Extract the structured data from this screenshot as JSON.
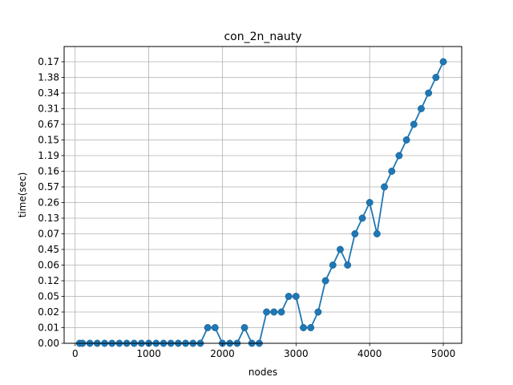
{
  "chart_data": {
    "type": "line",
    "title": "con_2n_nauty",
    "xlabel": "nodes",
    "ylabel": "time(sec)",
    "xlim": [
      -150,
      5250
    ],
    "x_ticks": [
      "0",
      "1000",
      "2000",
      "3000",
      "4000",
      "5000"
    ],
    "y_categories": [
      "0.00",
      "0.01",
      "0.02",
      "0.05",
      "0.12",
      "0.06",
      "0.45",
      "0.07",
      "0.13",
      "0.26",
      "0.57",
      "0.16",
      "1.19",
      "0.15",
      "0.67",
      "0.31",
      "0.34",
      "1.38",
      "0.17"
    ],
    "grid": true,
    "marker": "circle",
    "line_color": "#1f77b4",
    "points": [
      {
        "x": 60,
        "y": "0.00"
      },
      {
        "x": 100,
        "y": "0.00"
      },
      {
        "x": 200,
        "y": "0.00"
      },
      {
        "x": 300,
        "y": "0.00"
      },
      {
        "x": 400,
        "y": "0.00"
      },
      {
        "x": 500,
        "y": "0.00"
      },
      {
        "x": 600,
        "y": "0.00"
      },
      {
        "x": 700,
        "y": "0.00"
      },
      {
        "x": 800,
        "y": "0.00"
      },
      {
        "x": 900,
        "y": "0.00"
      },
      {
        "x": 1000,
        "y": "0.00"
      },
      {
        "x": 1100,
        "y": "0.00"
      },
      {
        "x": 1200,
        "y": "0.00"
      },
      {
        "x": 1300,
        "y": "0.00"
      },
      {
        "x": 1400,
        "y": "0.00"
      },
      {
        "x": 1500,
        "y": "0.00"
      },
      {
        "x": 1600,
        "y": "0.00"
      },
      {
        "x": 1700,
        "y": "0.00"
      },
      {
        "x": 1800,
        "y": "0.01"
      },
      {
        "x": 1900,
        "y": "0.01"
      },
      {
        "x": 2000,
        "y": "0.00"
      },
      {
        "x": 2100,
        "y": "0.00"
      },
      {
        "x": 2200,
        "y": "0.00"
      },
      {
        "x": 2300,
        "y": "0.01"
      },
      {
        "x": 2400,
        "y": "0.00"
      },
      {
        "x": 2500,
        "y": "0.00"
      },
      {
        "x": 2600,
        "y": "0.02"
      },
      {
        "x": 2700,
        "y": "0.02"
      },
      {
        "x": 2800,
        "y": "0.02"
      },
      {
        "x": 2900,
        "y": "0.05"
      },
      {
        "x": 3000,
        "y": "0.05"
      },
      {
        "x": 3100,
        "y": "0.01"
      },
      {
        "x": 3200,
        "y": "0.01"
      },
      {
        "x": 3300,
        "y": "0.02"
      },
      {
        "x": 3400,
        "y": "0.12"
      },
      {
        "x": 3500,
        "y": "0.06"
      },
      {
        "x": 3600,
        "y": "0.45"
      },
      {
        "x": 3700,
        "y": "0.06"
      },
      {
        "x": 3800,
        "y": "0.07"
      },
      {
        "x": 3900,
        "y": "0.13"
      },
      {
        "x": 4000,
        "y": "0.26"
      },
      {
        "x": 4100,
        "y": "0.07"
      },
      {
        "x": 4200,
        "y": "0.57"
      },
      {
        "x": 4300,
        "y": "0.16"
      },
      {
        "x": 4400,
        "y": "1.19"
      },
      {
        "x": 4500,
        "y": "0.15"
      },
      {
        "x": 4600,
        "y": "0.67"
      },
      {
        "x": 4700,
        "y": "0.31"
      },
      {
        "x": 4800,
        "y": "0.34"
      },
      {
        "x": 4900,
        "y": "1.38"
      },
      {
        "x": 5000,
        "y": "0.17"
      }
    ]
  }
}
